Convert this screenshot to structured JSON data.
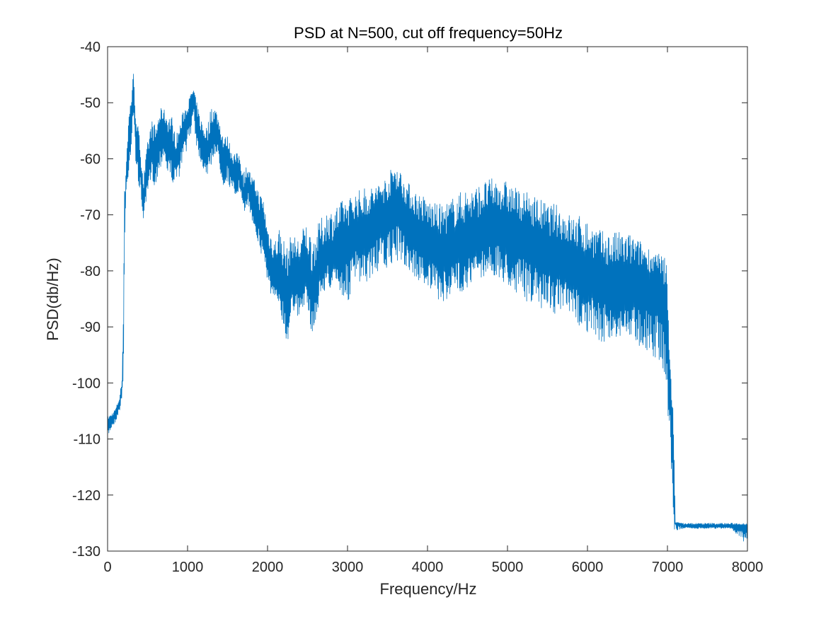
{
  "chart_data": {
    "type": "line",
    "title": "PSD at N=500, cut off frequency=50Hz",
    "xlabel": "Frequency/Hz",
    "ylabel": "PSD(db/Hz)",
    "xlim": [
      0,
      8000
    ],
    "ylim": [
      -130,
      -40
    ],
    "xticks": [
      0,
      1000,
      2000,
      3000,
      4000,
      5000,
      6000,
      7000,
      8000
    ],
    "xtick_labels": [
      "0",
      "1000",
      "2000",
      "3000",
      "4000",
      "5000",
      "6000",
      "7000",
      "8000"
    ],
    "yticks": [
      -130,
      -120,
      -110,
      -100,
      -90,
      -80,
      -70,
      -60,
      -50,
      -40
    ],
    "ytick_labels": [
      "-130",
      "-120",
      "-110",
      "-100",
      "-90",
      "-80",
      "-70",
      "-60",
      "-50",
      "-40"
    ],
    "grid": false,
    "box": true,
    "series": [
      {
        "color": "#0072BD",
        "x": [
          0,
          50,
          100,
          150,
          180,
          200,
          210,
          230,
          260,
          300,
          320,
          340,
          360,
          400,
          450,
          500,
          550,
          600,
          650,
          700,
          750,
          800,
          850,
          900,
          950,
          1000,
          1050,
          1080,
          1100,
          1150,
          1200,
          1250,
          1300,
          1350,
          1400,
          1450,
          1500,
          1550,
          1600,
          1650,
          1700,
          1750,
          1800,
          1850,
          1900,
          1950,
          2000,
          2050,
          2100,
          2150,
          2200,
          2250,
          2300,
          2350,
          2400,
          2450,
          2500,
          2550,
          2600,
          2650,
          2700,
          2750,
          2800,
          2850,
          2900,
          2950,
          3000,
          3100,
          3200,
          3300,
          3400,
          3500,
          3600,
          3700,
          3800,
          3900,
          4000,
          4100,
          4200,
          4300,
          4400,
          4500,
          4600,
          4700,
          4800,
          4900,
          5000,
          5100,
          5200,
          5300,
          5400,
          5500,
          5600,
          5700,
          5800,
          5900,
          6000,
          6100,
          6200,
          6300,
          6400,
          6500,
          6600,
          6700,
          6800,
          6900,
          6950,
          7000,
          7030,
          7060,
          7080,
          7100,
          7200,
          7400,
          7600,
          7800,
          8000
        ],
        "y": [
          -107,
          -106.5,
          -105.5,
          -103.5,
          -101,
          -90,
          -72,
          -64,
          -58,
          -52,
          -47,
          -53,
          -57,
          -60,
          -68,
          -62,
          -58,
          -60,
          -56,
          -54,
          -57,
          -58,
          -60,
          -58,
          -55,
          -53,
          -50,
          -48,
          -52,
          -56,
          -58,
          -59,
          -56,
          -54,
          -57,
          -60,
          -59,
          -62,
          -63,
          -62,
          -67,
          -64,
          -67,
          -68,
          -71,
          -72,
          -77,
          -80,
          -81,
          -80,
          -83,
          -84,
          -80,
          -81,
          -82,
          -80,
          -81,
          -84,
          -82,
          -79,
          -79,
          -77,
          -78,
          -77,
          -77,
          -75,
          -75,
          -73,
          -74,
          -72,
          -71,
          -70,
          -68,
          -70,
          -72,
          -74,
          -75,
          -76,
          -77,
          -76,
          -75,
          -75,
          -74,
          -73,
          -72,
          -72,
          -73,
          -74,
          -74,
          -75,
          -76,
          -77,
          -77,
          -78,
          -79,
          -80,
          -81,
          -81,
          -82,
          -83,
          -83,
          -83,
          -82,
          -82,
          -83,
          -84,
          -86,
          -92,
          -100,
          -108,
          -118,
          -124.5,
          -125.5,
          -125.5,
          -125.5,
          -125.5,
          -125.5
        ],
        "y_min": [
          -110,
          -108,
          -107,
          -105,
          -103,
          -98,
          -78,
          -67,
          -63,
          -58,
          -53,
          -58,
          -62,
          -66,
          -71,
          -67,
          -64,
          -65,
          -62,
          -60,
          -63,
          -64,
          -65,
          -63,
          -60,
          -58,
          -55,
          -52,
          -57,
          -60,
          -62,
          -63,
          -61,
          -59,
          -62,
          -65,
          -64,
          -66,
          -67,
          -66,
          -70,
          -68,
          -71,
          -73,
          -77,
          -78,
          -82,
          -85,
          -87,
          -86,
          -90,
          -95,
          -86,
          -88,
          -90,
          -86,
          -87,
          -91,
          -90,
          -85,
          -84,
          -82,
          -84,
          -82,
          -84,
          -85,
          -86,
          -82,
          -83,
          -81,
          -80,
          -80,
          -78,
          -79,
          -81,
          -82,
          -83,
          -85,
          -86,
          -84,
          -84,
          -83,
          -82,
          -81,
          -81,
          -82,
          -83,
          -84,
          -85,
          -86,
          -87,
          -86,
          -88,
          -88,
          -89,
          -90,
          -91,
          -92,
          -93,
          -93,
          -92,
          -92,
          -93,
          -94,
          -95,
          -96,
          -98,
          -104,
          -112,
          -121,
          -126.5,
          -126.5,
          -126,
          -126,
          -126,
          -126,
          -129
        ],
        "y_max": [
          -106,
          -105.5,
          -104.5,
          -102.5,
          -99,
          -82,
          -66,
          -61,
          -52,
          -48,
          -43.5,
          -49,
          -52,
          -56,
          -63,
          -57,
          -53,
          -54,
          -51,
          -51,
          -52,
          -52,
          -56,
          -54,
          -51,
          -50,
          -48,
          -47.8,
          -49,
          -52,
          -54,
          -54,
          -50,
          -51,
          -53,
          -56,
          -56,
          -58,
          -59,
          -59,
          -62,
          -61,
          -63,
          -64,
          -66,
          -67,
          -72,
          -73,
          -74,
          -72,
          -74,
          -76,
          -73,
          -74,
          -74,
          -72,
          -71,
          -74,
          -73,
          -71,
          -70,
          -69,
          -69,
          -68,
          -68,
          -67,
          -67,
          -66,
          -65,
          -65,
          -64,
          -63,
          -60.2,
          -63,
          -65,
          -66,
          -67,
          -68,
          -68,
          -67,
          -66,
          -65,
          -65,
          -64,
          -63.5,
          -63.5,
          -64,
          -65,
          -66,
          -66,
          -67,
          -68,
          -68,
          -69,
          -70,
          -70,
          -71,
          -72,
          -73,
          -73,
          -73,
          -73,
          -74,
          -75,
          -76,
          -77,
          -77,
          -77,
          -96,
          -100,
          -110,
          -125,
          -125,
          -125,
          -125,
          -125,
          -125
        ]
      }
    ]
  }
}
